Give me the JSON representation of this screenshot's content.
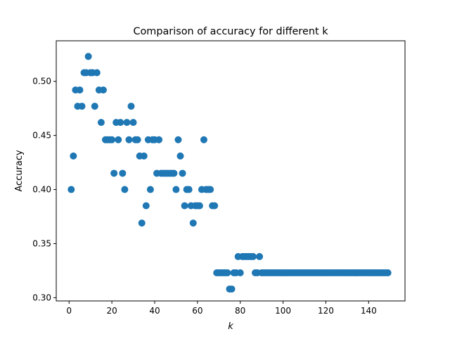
{
  "chart_data": {
    "type": "scatter",
    "title": "Comparison of accuracy for different k",
    "xlabel": "k",
    "ylabel": "Accuracy",
    "xlim": [
      -6,
      157
    ],
    "ylim": [
      0.297,
      0.5375
    ],
    "xticks": [
      0,
      20,
      40,
      60,
      80,
      100,
      120,
      140
    ],
    "yticks": [
      0.3,
      0.35,
      0.4,
      0.45,
      0.5
    ],
    "xtick_labels": [
      "0",
      "20",
      "40",
      "60",
      "80",
      "100",
      "120",
      "140"
    ],
    "ytick_labels": [
      "0.30",
      "0.35",
      "0.40",
      "0.45",
      "0.50"
    ],
    "grid": false,
    "marker_color": "#1f77b4",
    "points": [
      [
        1,
        0.4
      ],
      [
        2,
        0.431
      ],
      [
        3,
        0.492
      ],
      [
        4,
        0.477
      ],
      [
        5,
        0.492
      ],
      [
        6,
        0.477
      ],
      [
        7,
        0.508
      ],
      [
        8,
        0.508
      ],
      [
        9,
        0.523
      ],
      [
        10,
        0.508
      ],
      [
        11,
        0.508
      ],
      [
        12,
        0.477
      ],
      [
        13,
        0.508
      ],
      [
        14,
        0.492
      ],
      [
        15,
        0.462
      ],
      [
        16,
        0.492
      ],
      [
        17,
        0.446
      ],
      [
        18,
        0.446
      ],
      [
        19,
        0.446
      ],
      [
        20,
        0.446
      ],
      [
        21,
        0.415
      ],
      [
        22,
        0.462
      ],
      [
        23,
        0.446
      ],
      [
        24,
        0.462
      ],
      [
        25,
        0.415
      ],
      [
        26,
        0.4
      ],
      [
        27,
        0.462
      ],
      [
        28,
        0.446
      ],
      [
        29,
        0.477
      ],
      [
        30,
        0.462
      ],
      [
        31,
        0.446
      ],
      [
        32,
        0.446
      ],
      [
        33,
        0.431
      ],
      [
        34,
        0.369
      ],
      [
        35,
        0.431
      ],
      [
        36,
        0.385
      ],
      [
        37,
        0.446
      ],
      [
        38,
        0.4
      ],
      [
        39,
        0.446
      ],
      [
        40,
        0.446
      ],
      [
        41,
        0.415
      ],
      [
        42,
        0.446
      ],
      [
        43,
        0.415
      ],
      [
        44,
        0.415
      ],
      [
        45,
        0.415
      ],
      [
        46,
        0.415
      ],
      [
        47,
        0.415
      ],
      [
        48,
        0.415
      ],
      [
        49,
        0.415
      ],
      [
        50,
        0.4
      ],
      [
        51,
        0.446
      ],
      [
        52,
        0.431
      ],
      [
        53,
        0.415
      ],
      [
        54,
        0.385
      ],
      [
        55,
        0.4
      ],
      [
        56,
        0.4
      ],
      [
        57,
        0.385
      ],
      [
        58,
        0.369
      ],
      [
        59,
        0.385
      ],
      [
        60,
        0.385
      ],
      [
        61,
        0.385
      ],
      [
        62,
        0.4
      ],
      [
        63,
        0.446
      ],
      [
        64,
        0.4
      ],
      [
        65,
        0.4
      ],
      [
        66,
        0.4
      ],
      [
        67,
        0.385
      ],
      [
        68,
        0.385
      ],
      [
        69,
        0.323
      ],
      [
        70,
        0.323
      ],
      [
        71,
        0.323
      ],
      [
        72,
        0.323
      ],
      [
        73,
        0.323
      ],
      [
        74,
        0.323
      ],
      [
        75,
        0.308
      ],
      [
        76,
        0.308
      ],
      [
        77,
        0.323
      ],
      [
        78,
        0.323
      ],
      [
        79,
        0.338
      ],
      [
        80,
        0.323
      ],
      [
        81,
        0.338
      ],
      [
        82,
        0.338
      ],
      [
        83,
        0.338
      ],
      [
        84,
        0.338
      ],
      [
        85,
        0.338
      ],
      [
        86,
        0.338
      ],
      [
        87,
        0.323
      ],
      [
        88,
        0.323
      ],
      [
        89,
        0.338
      ],
      [
        90,
        0.323
      ],
      [
        91,
        0.323
      ],
      [
        92,
        0.323
      ],
      [
        93,
        0.323
      ],
      [
        94,
        0.323
      ],
      [
        95,
        0.323
      ],
      [
        96,
        0.323
      ],
      [
        97,
        0.323
      ],
      [
        98,
        0.323
      ],
      [
        99,
        0.323
      ],
      [
        100,
        0.323
      ],
      [
        101,
        0.323
      ],
      [
        102,
        0.323
      ],
      [
        103,
        0.323
      ],
      [
        104,
        0.323
      ],
      [
        105,
        0.323
      ],
      [
        106,
        0.323
      ],
      [
        107,
        0.323
      ],
      [
        108,
        0.323
      ],
      [
        109,
        0.323
      ],
      [
        110,
        0.323
      ],
      [
        111,
        0.323
      ],
      [
        112,
        0.323
      ],
      [
        113,
        0.323
      ],
      [
        114,
        0.323
      ],
      [
        115,
        0.323
      ],
      [
        116,
        0.323
      ],
      [
        117,
        0.323
      ],
      [
        118,
        0.323
      ],
      [
        119,
        0.323
      ],
      [
        120,
        0.323
      ],
      [
        121,
        0.323
      ],
      [
        122,
        0.323
      ],
      [
        123,
        0.323
      ],
      [
        124,
        0.323
      ],
      [
        125,
        0.323
      ],
      [
        126,
        0.323
      ],
      [
        127,
        0.323
      ],
      [
        128,
        0.323
      ],
      [
        129,
        0.323
      ],
      [
        130,
        0.323
      ],
      [
        131,
        0.323
      ],
      [
        132,
        0.323
      ],
      [
        133,
        0.323
      ],
      [
        134,
        0.323
      ],
      [
        135,
        0.323
      ],
      [
        136,
        0.323
      ],
      [
        137,
        0.323
      ],
      [
        138,
        0.323
      ],
      [
        139,
        0.323
      ],
      [
        140,
        0.323
      ],
      [
        141,
        0.323
      ],
      [
        142,
        0.323
      ],
      [
        143,
        0.323
      ],
      [
        144,
        0.323
      ],
      [
        145,
        0.323
      ],
      [
        146,
        0.323
      ],
      [
        147,
        0.323
      ],
      [
        148,
        0.323
      ],
      [
        149,
        0.323
      ]
    ]
  }
}
